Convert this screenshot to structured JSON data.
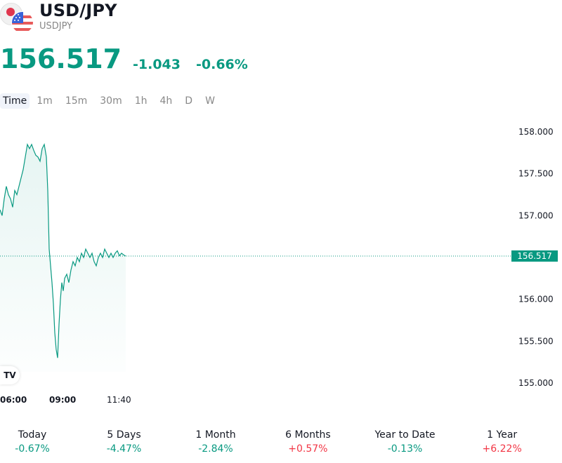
{
  "header": {
    "title": "USD/JPY",
    "subtitle": "USDJPY",
    "price": "156.517",
    "change": "-1.043",
    "change_pct": "-0.66%"
  },
  "tabs": [
    {
      "label": "Time",
      "active": true
    },
    {
      "label": "1m",
      "active": false
    },
    {
      "label": "15m",
      "active": false
    },
    {
      "label": "30m",
      "active": false
    },
    {
      "label": "1h",
      "active": false
    },
    {
      "label": "4h",
      "active": false
    },
    {
      "label": "D",
      "active": false
    },
    {
      "label": "W",
      "active": false
    }
  ],
  "chart_data": {
    "type": "area",
    "y_ticks": [
      "158.000",
      "157.500",
      "157.000",
      "156.000",
      "155.500",
      "155.000"
    ],
    "x_ticks": [
      "06:00",
      "09:00",
      "11:40"
    ],
    "ylim": [
      154.9,
      158.15
    ],
    "last_price_label": "156.517",
    "last_price": 156.517,
    "series": [
      {
        "x": [
          0,
          3,
          6,
          9,
          12,
          15,
          18,
          21,
          24,
          27,
          30,
          33,
          36,
          39,
          42,
          45,
          48,
          51,
          54,
          57,
          60,
          63,
          66,
          68,
          70,
          72,
          74,
          76,
          78,
          80,
          82,
          84,
          86,
          88,
          90,
          92,
          95,
          98,
          101,
          104,
          107,
          110,
          113,
          116,
          119,
          122,
          125,
          128,
          131,
          134,
          137,
          140,
          143,
          146,
          149,
          152,
          155,
          158,
          161,
          164,
          167,
          170,
          173,
          176,
          179
        ],
        "y": [
          157.07,
          157.0,
          157.2,
          157.35,
          157.25,
          157.2,
          157.1,
          157.3,
          157.25,
          157.35,
          157.45,
          157.55,
          157.7,
          157.85,
          157.8,
          157.85,
          157.78,
          157.72,
          157.7,
          157.65,
          157.8,
          157.85,
          157.7,
          157.3,
          156.6,
          156.4,
          156.2,
          155.95,
          155.6,
          155.4,
          155.3,
          155.7,
          156.0,
          156.2,
          156.1,
          156.25,
          156.3,
          156.2,
          156.35,
          156.45,
          156.4,
          156.5,
          156.45,
          156.55,
          156.5,
          156.6,
          156.55,
          156.5,
          156.55,
          156.45,
          156.4,
          156.5,
          156.55,
          156.5,
          156.6,
          156.55,
          156.5,
          156.55,
          156.5,
          156.55,
          156.58,
          156.52,
          156.55,
          156.53,
          156.517
        ]
      }
    ]
  },
  "performance": [
    {
      "label": "Today",
      "value": "-0.67%",
      "positive": false
    },
    {
      "label": "5 Days",
      "value": "-4.47%",
      "positive": false
    },
    {
      "label": "1 Month",
      "value": "-2.84%",
      "positive": false
    },
    {
      "label": "6 Months",
      "value": "+0.57%",
      "positive": true
    },
    {
      "label": "Year to Date",
      "value": "-0.13%",
      "positive": false
    },
    {
      "label": "1 Year",
      "value": "+6.22%",
      "positive": true
    }
  ],
  "colors": {
    "up": "#089981",
    "down_pct_text": "#089981",
    "red": "#f23645",
    "line": "#089981",
    "fill": "#e8f5f2"
  },
  "logo": "TV"
}
